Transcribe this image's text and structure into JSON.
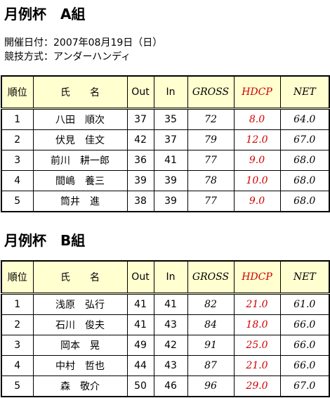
{
  "sections": [
    {
      "title": "月例杯　A組",
      "info": [
        "開催日付：2007年08月19日（日）",
        "競技方式：アンダーハンディ"
      ],
      "table": {
        "header": [
          "順位",
          "氏　　名",
          "Out",
          "In",
          "GROSS",
          "HDCP",
          "NET"
        ],
        "rows": [
          [
            "1",
            "八田　順次",
            "37",
            "35",
            "72",
            "8.0",
            "64.0"
          ],
          [
            "2",
            "伏見　佳文",
            "42",
            "37",
            "79",
            "12.0",
            "67.0"
          ],
          [
            "3",
            "前川　耕一郎",
            "36",
            "41",
            "77",
            "9.0",
            "68.0"
          ],
          [
            "4",
            "間嶋　養三",
            "39",
            "39",
            "78",
            "10.0",
            "68.0"
          ],
          [
            "5",
            "筒井　進",
            "38",
            "39",
            "77",
            "9.0",
            "68.0"
          ]
        ]
      }
    },
    {
      "title": "月例杯　B組",
      "table": {
        "header": [
          "順位",
          "氏　　名",
          "Out",
          "In",
          "GROSS",
          "HDCP",
          "NET"
        ],
        "rows": [
          [
            "1",
            "浅原　弘行",
            "41",
            "41",
            "82",
            "21.0",
            "61.0"
          ],
          [
            "2",
            "石川　俊夫",
            "41",
            "43",
            "84",
            "18.0",
            "66.0"
          ],
          [
            "3",
            "岡本　晃",
            "49",
            "42",
            "91",
            "25.0",
            "66.0"
          ],
          [
            "4",
            "中村　哲也",
            "44",
            "43",
            "87",
            "21.0",
            "66.0"
          ],
          [
            "5",
            "森　敬介",
            "50",
            "46",
            "96",
            "29.0",
            "67.0"
          ]
        ]
      }
    }
  ]
}
